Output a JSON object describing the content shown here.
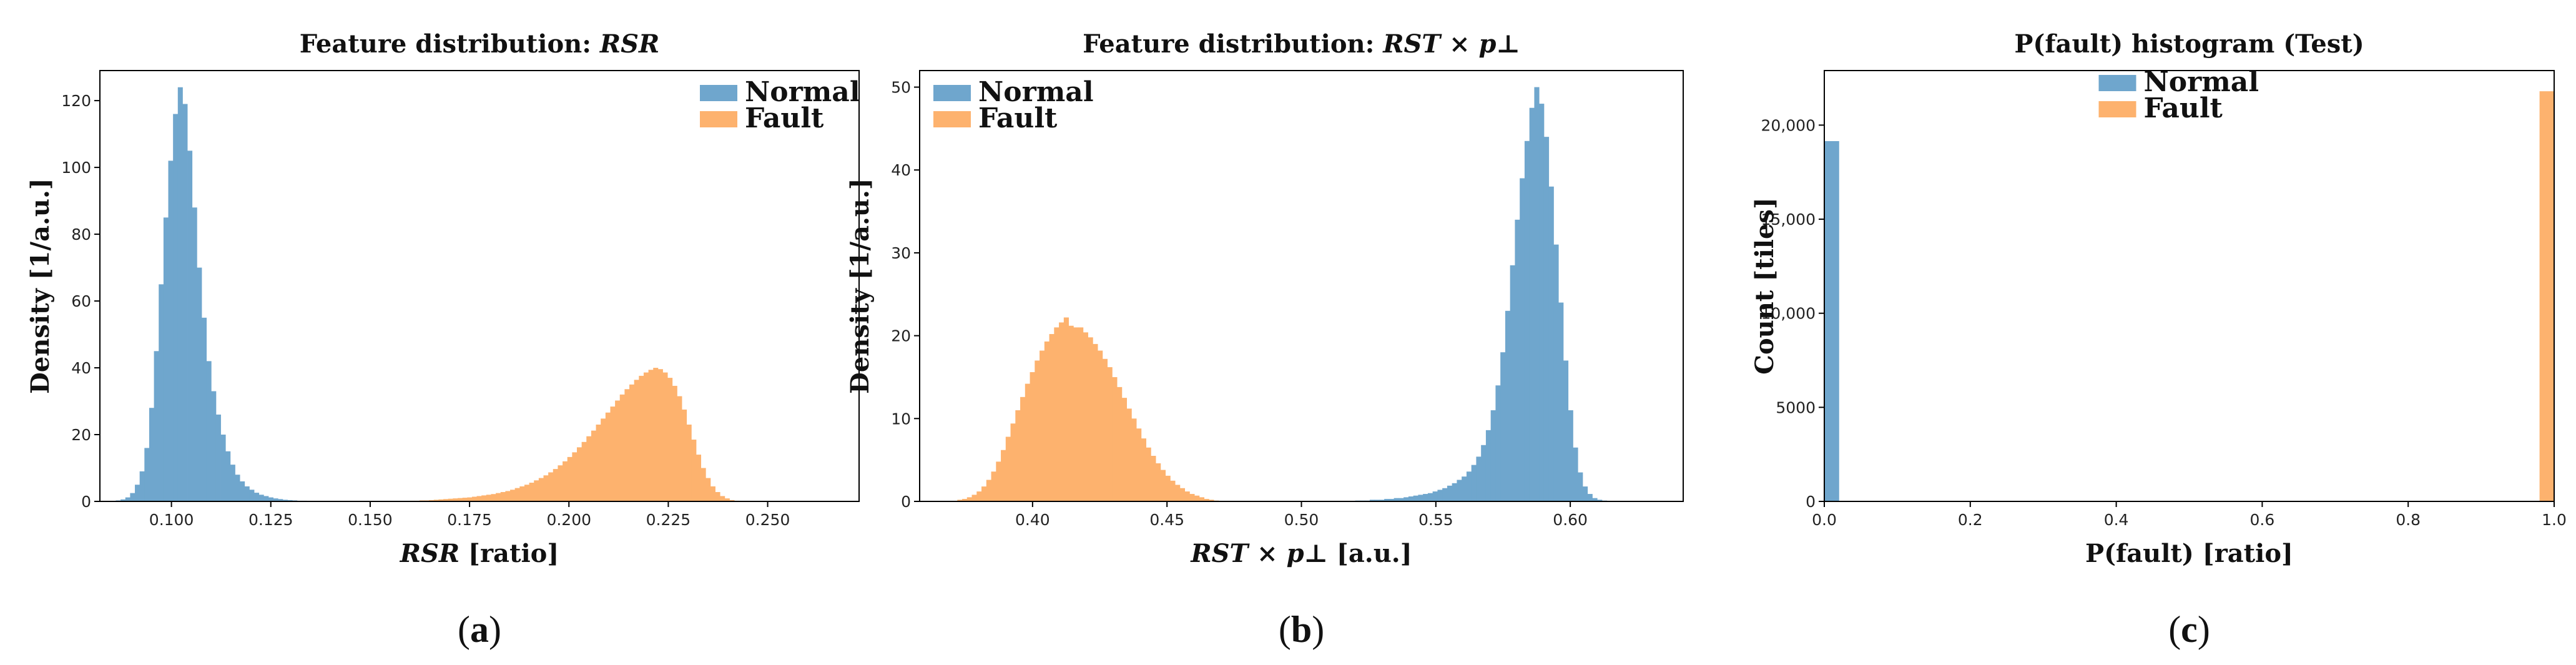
{
  "colors": {
    "normal": "#6fa6cd",
    "fault": "#fdb26e"
  },
  "chart_data": [
    {
      "type": "bar",
      "panel": {
        "open": "(",
        "letter": "a",
        "close": ")"
      },
      "title": {
        "prefix": "Feature distribution: ",
        "math": "RSR",
        "suffix": ""
      },
      "xlabel": {
        "math": "RSR",
        "suffix": " [ratio]"
      },
      "ylabel": "Density [1/a.u.]",
      "xlim": [
        0.082,
        0.273
      ],
      "ylim": [
        0,
        129
      ],
      "xticks": [
        "0.100",
        "0.125",
        "0.150",
        "0.175",
        "0.200",
        "0.225",
        "0.250"
      ],
      "xtick_values": [
        0.1,
        0.125,
        0.15,
        0.175,
        0.2,
        0.225,
        0.25
      ],
      "yticks": [
        "0",
        "20",
        "40",
        "60",
        "80",
        "100",
        "120"
      ],
      "ytick_values": [
        0,
        20,
        40,
        60,
        80,
        100,
        120
      ],
      "legend": {
        "placement": "top-right",
        "entries": [
          "Normal",
          "Fault"
        ]
      },
      "series": [
        {
          "name": "Normal",
          "color": "#6fa6cd",
          "bins": {
            "start": 0.086,
            "width": 0.0012
          },
          "values": [
            0.3,
            0.6,
            1.2,
            2.5,
            5,
            9,
            16,
            28,
            45,
            65,
            85,
            102,
            116,
            124,
            119,
            105,
            88,
            70,
            55,
            42,
            33,
            26,
            20,
            15,
            11,
            8,
            6,
            4.5,
            3.5,
            2.6,
            2,
            1.6,
            1.2,
            0.9,
            0.7,
            0.5,
            0.4,
            0.3,
            0.2,
            0.2,
            0.1,
            0.1
          ]
        },
        {
          "name": "Fault",
          "color": "#fdb26e",
          "bins": {
            "start": 0.16,
            "width": 0.0012
          },
          "values": [
            0.2,
            0.2,
            0.3,
            0.3,
            0.4,
            0.5,
            0.6,
            0.7,
            0.8,
            0.9,
            1,
            1.1,
            1.2,
            1.4,
            1.6,
            1.8,
            2,
            2.2,
            2.5,
            2.8,
            3.1,
            3.5,
            4,
            4.5,
            5,
            5.6,
            6.3,
            7,
            7.8,
            8.7,
            9.7,
            10.8,
            12,
            13.3,
            14.7,
            16.2,
            17.8,
            19.5,
            21.2,
            23,
            24.8,
            26.6,
            28.4,
            30.2,
            32,
            33.6,
            35,
            36.4,
            37.6,
            38.6,
            39.4,
            40,
            39.6,
            38.6,
            37,
            34.6,
            31.5,
            27.5,
            23,
            18.5,
            14,
            10,
            7,
            4.5,
            2.8,
            1.6,
            0.9,
            0.4,
            0.2
          ]
        }
      ]
    },
    {
      "type": "bar",
      "panel": {
        "open": "(",
        "letter": "b",
        "close": ")"
      },
      "title": {
        "prefix": "Feature distribution: ",
        "math": "RST",
        "suffix": " × p⊥"
      },
      "xlabel": {
        "math": "RST × p⊥",
        "suffix": " [a.u.]"
      },
      "ylabel": "Density [1/a.u.]",
      "xlim": [
        0.358,
        0.642
      ],
      "ylim": [
        0,
        52
      ],
      "xticks": [
        "0.40",
        "0.45",
        "0.50",
        "0.55",
        "0.60"
      ],
      "xtick_values": [
        0.4,
        0.45,
        0.5,
        0.55,
        0.6
      ],
      "yticks": [
        "0",
        "10",
        "20",
        "30",
        "40",
        "50"
      ],
      "ytick_values": [
        0,
        10,
        20,
        30,
        40,
        50
      ],
      "legend": {
        "placement": "top-left",
        "entries": [
          "Normal",
          "Fault"
        ]
      },
      "series": [
        {
          "name": "Normal",
          "color": "#6fa6cd",
          "bins": {
            "start": 0.52,
            "width": 0.0018
          },
          "values": [
            0.1,
            0.1,
            0.1,
            0.2,
            0.2,
            0.2,
            0.3,
            0.3,
            0.4,
            0.4,
            0.5,
            0.6,
            0.7,
            0.8,
            0.9,
            1,
            1.2,
            1.4,
            1.6,
            1.9,
            2.2,
            2.6,
            3,
            3.6,
            4.4,
            5.4,
            6.8,
            8.6,
            11,
            14,
            18,
            23,
            28.5,
            34,
            39,
            43.5,
            47.5,
            50,
            48,
            44,
            38,
            31,
            24,
            17,
            11,
            6.5,
            3.5,
            1.8,
            0.9,
            0.4,
            0.2,
            0.1
          ]
        },
        {
          "name": "Fault",
          "color": "#fdb26e",
          "bins": {
            "start": 0.372,
            "width": 0.0018
          },
          "values": [
            0.2,
            0.3,
            0.5,
            0.8,
            1.2,
            1.8,
            2.6,
            3.6,
            4.8,
            6.2,
            7.8,
            9.4,
            11,
            12.6,
            14.2,
            15.6,
            17,
            18.2,
            19.3,
            20.2,
            21,
            21.6,
            22.2,
            21.2,
            21,
            21,
            20.4,
            19.8,
            19,
            18.2,
            17.2,
            16.2,
            15,
            13.8,
            12.5,
            11.2,
            10,
            8.8,
            7.6,
            6.5,
            5.5,
            4.6,
            3.8,
            3.1,
            2.5,
            2,
            1.6,
            1.2,
            0.9,
            0.7,
            0.5,
            0.3,
            0.2,
            0.1
          ]
        }
      ]
    },
    {
      "type": "bar",
      "panel": {
        "open": "(",
        "letter": "c",
        "close": ")"
      },
      "title": {
        "prefix": "P(fault) histogram (Test)",
        "math": "",
        "suffix": ""
      },
      "xlabel": {
        "math": "",
        "suffix": "P(fault) [ratio]"
      },
      "ylabel": "Count [tiles]",
      "xlim": [
        0,
        1
      ],
      "ylim": [
        0,
        22900
      ],
      "xticks": [
        "0.0",
        "0.2",
        "0.4",
        "0.6",
        "0.8",
        "1.0"
      ],
      "xtick_values": [
        0,
        0.2,
        0.4,
        0.6,
        0.8,
        1.0
      ],
      "yticks": [
        "0",
        "5000",
        "10,000",
        "15,000",
        "20,000"
      ],
      "ytick_values": [
        0,
        5000,
        10000,
        15000,
        20000
      ],
      "legend": {
        "placement": "top-center",
        "entries": [
          "Normal",
          "Fault"
        ]
      },
      "series": [
        {
          "name": "Normal",
          "color": "#6fa6cd",
          "bins": {
            "start": 0,
            "width": 0.02
          },
          "values": [
            19150
          ]
        },
        {
          "name": "Fault",
          "color": "#fdb26e",
          "bins": {
            "start": 0.98,
            "width": 0.02
          },
          "values": [
            21800
          ]
        }
      ]
    }
  ]
}
